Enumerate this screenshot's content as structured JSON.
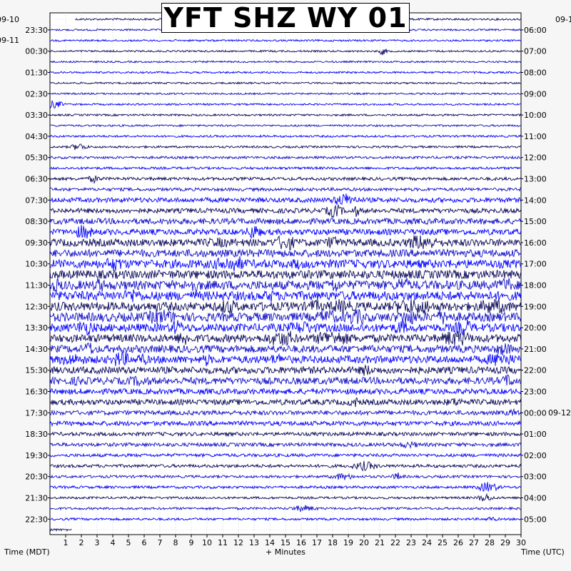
{
  "chart_data": {
    "type": "helicorder",
    "title": "YFT SHZ WY 01",
    "xlabel": "+ Minutes",
    "left_axis_label": "Time (MDT)",
    "right_axis_label": "Time (UTC)",
    "x_ticks": [
      "1",
      "2",
      "3",
      "4",
      "5",
      "6",
      "7",
      "8",
      "9",
      "10",
      "11",
      "12",
      "13",
      "14",
      "15",
      "16",
      "17",
      "18",
      "19",
      "20",
      "21",
      "22",
      "23",
      "24",
      "25",
      "26",
      "27",
      "28",
      "29",
      "30"
    ],
    "xlim": [
      0,
      30
    ],
    "left_times": [
      "23:30",
      "00:30",
      "01:30",
      "02:30",
      "03:30",
      "04:30",
      "05:30",
      "06:30",
      "07:30",
      "08:30",
      "09:30",
      "10:30",
      "11:30",
      "12:30",
      "13:30",
      "14:30",
      "15:30",
      "16:30",
      "17:30",
      "18:30",
      "19:30",
      "20:30",
      "21:30",
      "22:30"
    ],
    "right_times": [
      "06:00",
      "07:00",
      "08:00",
      "09:00",
      "10:00",
      "11:00",
      "12:00",
      "13:00",
      "14:00",
      "15:00",
      "16:00",
      "17:00",
      "18:00",
      "19:00",
      "20:00",
      "21:00",
      "22:00",
      "23:00",
      "00:00",
      "01:00",
      "02:00",
      "03:00",
      "04:00",
      "05:00"
    ],
    "date_labels": {
      "left_top": "09-10",
      "left_second": "09-11",
      "right_top": "09-1",
      "right_midnight": "09-12"
    },
    "trace_count": 49,
    "trace_colors": [
      "#0a0a5a",
      "#1010c8",
      "#0000ff"
    ],
    "gridlines": true,
    "noise_by_hour_mdt": [
      {
        "hour": "23:00",
        "level": 0.35
      },
      {
        "hour": "00:00",
        "level": 0.3
      },
      {
        "hour": "01:00",
        "level": 0.3
      },
      {
        "hour": "02:00",
        "level": 0.3
      },
      {
        "hour": "03:00",
        "level": 0.3
      },
      {
        "hour": "04:00",
        "level": 0.35
      },
      {
        "hour": "05:00",
        "level": 0.4
      },
      {
        "hour": "06:00",
        "level": 0.55
      },
      {
        "hour": "07:00",
        "level": 0.8
      },
      {
        "hour": "08:00",
        "level": 1.4
      },
      {
        "hour": "09:00",
        "level": 1.8
      },
      {
        "hour": "10:00",
        "level": 2.4
      },
      {
        "hour": "11:00",
        "level": 2.8
      },
      {
        "hour": "12:00",
        "level": 3.0
      },
      {
        "hour": "13:00",
        "level": 2.9
      },
      {
        "hour": "14:00",
        "level": 2.6
      },
      {
        "hour": "15:00",
        "level": 2.4
      },
      {
        "hour": "16:00",
        "level": 2.2
      },
      {
        "hour": "17:00",
        "level": 1.7
      },
      {
        "hour": "18:00",
        "level": 1.3
      },
      {
        "hour": "19:00",
        "level": 1.0
      },
      {
        "hour": "20:00",
        "level": 0.8
      },
      {
        "hour": "21:00",
        "level": 0.6
      },
      {
        "hour": "22:00",
        "level": 0.5
      }
    ]
  }
}
